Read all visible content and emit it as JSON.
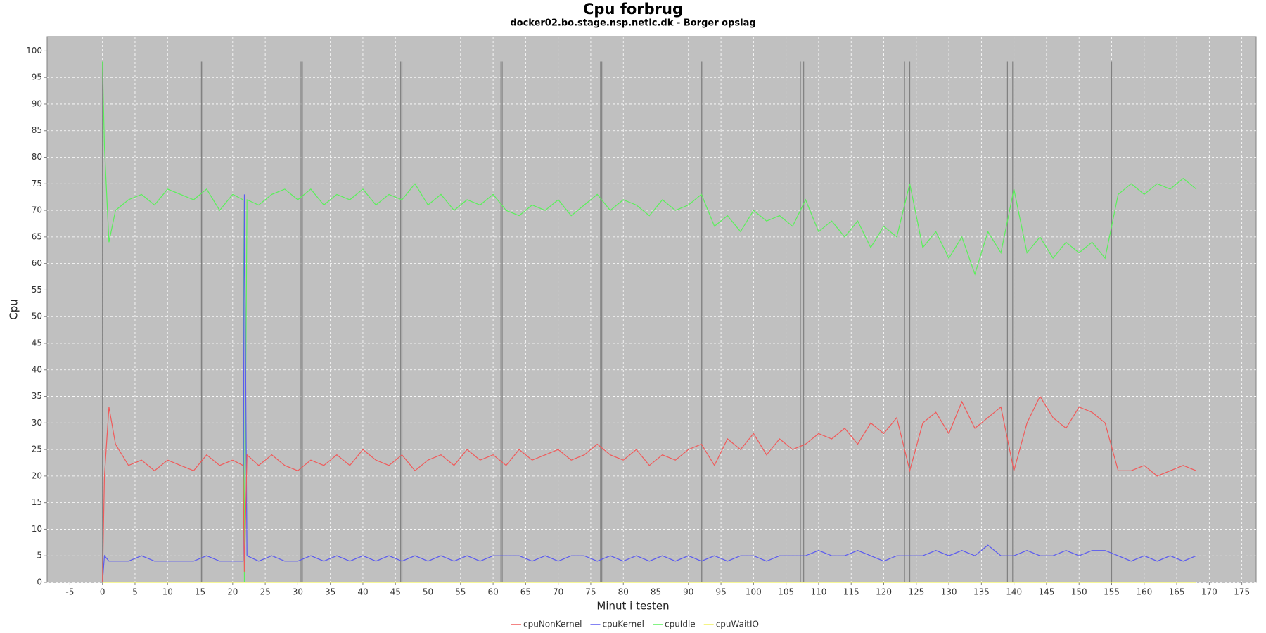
{
  "chart_data": {
    "type": "line",
    "title": "Cpu forbrug",
    "subtitle": "docker02.bo.stage.nsp.netic.dk - Borger opslag",
    "x_label": "Minut i testen",
    "y_label": "Cpu",
    "xlim": [
      -8.5,
      177.2
    ],
    "ylim": [
      0,
      102.7
    ],
    "xticks": [
      -5,
      0,
      5,
      10,
      15,
      20,
      25,
      30,
      35,
      40,
      45,
      50,
      55,
      60,
      65,
      70,
      75,
      80,
      85,
      90,
      95,
      100,
      105,
      110,
      115,
      120,
      125,
      130,
      135,
      140,
      145,
      150,
      155,
      160,
      165,
      170,
      175
    ],
    "yticks": [
      0,
      5,
      10,
      15,
      20,
      25,
      30,
      35,
      40,
      45,
      50,
      55,
      60,
      65,
      70,
      75,
      80,
      85,
      90,
      95,
      100
    ],
    "grid": true,
    "markers": [
      0,
      15.2,
      15.4,
      30.5,
      30.7,
      45.8,
      46.0,
      61.2,
      61.4,
      76.5,
      76.7,
      92.0,
      92.2,
      107.2,
      107.7,
      123.2,
      124.0,
      139.0,
      139.8,
      155.0
    ],
    "marker_top": 98,
    "marker_color": "#808080",
    "x": [
      0,
      0.3,
      1,
      2,
      4,
      6,
      8,
      10,
      12,
      14,
      16,
      18,
      20,
      21.6,
      21.8,
      22.2,
      24,
      26,
      28,
      30,
      32,
      34,
      36,
      38,
      40,
      42,
      44,
      46,
      48,
      50,
      52,
      54,
      56,
      58,
      60,
      62,
      64,
      66,
      68,
      70,
      72,
      74,
      76,
      78,
      80,
      82,
      84,
      86,
      88,
      90,
      92,
      94,
      96,
      98,
      100,
      102,
      104,
      106,
      108,
      110,
      112,
      114,
      116,
      118,
      120,
      122,
      124,
      126,
      128,
      130,
      132,
      134,
      136,
      138,
      140,
      142,
      144,
      146,
      148,
      150,
      152,
      154,
      156,
      158,
      160,
      162,
      164,
      166,
      168
    ],
    "series": [
      {
        "name": "cpuNonKernel",
        "color": "#f05a5a",
        "values": [
          0,
          20,
          33,
          26,
          22,
          23,
          21,
          23,
          22,
          21,
          24,
          22,
          23,
          22,
          2,
          24,
          22,
          24,
          22,
          21,
          23,
          22,
          24,
          22,
          25,
          23,
          22,
          24,
          21,
          23,
          24,
          22,
          25,
          23,
          24,
          22,
          25,
          23,
          24,
          25,
          23,
          24,
          26,
          24,
          23,
          25,
          22,
          24,
          23,
          25,
          26,
          22,
          27,
          25,
          28,
          24,
          27,
          25,
          26,
          28,
          27,
          29,
          26,
          30,
          28,
          31,
          21,
          30,
          32,
          28,
          34,
          29,
          31,
          33,
          21,
          30,
          35,
          31,
          29,
          33,
          32,
          30,
          21,
          21,
          22,
          20,
          21,
          22,
          21
        ]
      },
      {
        "name": "cpuKernel",
        "color": "#5a5af0",
        "values": [
          0,
          5,
          4,
          4,
          4,
          5,
          4,
          4,
          4,
          4,
          5,
          4,
          4,
          4,
          73,
          5,
          4,
          5,
          4,
          4,
          5,
          4,
          5,
          4,
          5,
          4,
          5,
          4,
          5,
          4,
          5,
          4,
          5,
          4,
          5,
          5,
          5,
          4,
          5,
          4,
          5,
          5,
          4,
          5,
          4,
          5,
          4,
          5,
          4,
          5,
          4,
          5,
          4,
          5,
          5,
          4,
          5,
          5,
          5,
          6,
          5,
          5,
          6,
          5,
          4,
          5,
          5,
          5,
          6,
          5,
          6,
          5,
          7,
          5,
          5,
          6,
          5,
          5,
          6,
          5,
          6,
          6,
          5,
          4,
          5,
          4,
          5,
          4,
          5
        ]
      },
      {
        "name": "cpuIdle",
        "color": "#5af05a",
        "values": [
          98,
          82,
          64,
          70,
          72,
          73,
          71,
          74,
          73,
          72,
          74,
          70,
          73,
          72,
          0,
          72,
          71,
          73,
          74,
          72,
          74,
          71,
          73,
          72,
          74,
          71,
          73,
          72,
          75,
          71,
          73,
          70,
          72,
          71,
          73,
          70,
          69,
          71,
          70,
          72,
          69,
          71,
          73,
          70,
          72,
          71,
          69,
          72,
          70,
          71,
          73,
          67,
          69,
          66,
          70,
          68,
          69,
          67,
          72,
          66,
          68,
          65,
          68,
          63,
          67,
          65,
          75,
          63,
          66,
          61,
          65,
          58,
          66,
          62,
          74,
          62,
          65,
          61,
          64,
          62,
          64,
          61,
          73,
          75,
          73,
          75,
          74,
          76,
          74
        ]
      },
      {
        "name": "cpuWaitIO",
        "color": "#f0f05a",
        "values": [
          0,
          0,
          0,
          0,
          0,
          0,
          0,
          0,
          0,
          0,
          0,
          0,
          0,
          0,
          0,
          0,
          0,
          0,
          0,
          0,
          0,
          0,
          0,
          0,
          0,
          0,
          0,
          0,
          0,
          0,
          0,
          0,
          0,
          0,
          0,
          0,
          0,
          0,
          0,
          0,
          0,
          0,
          0,
          0,
          0,
          0,
          0,
          0,
          0,
          0,
          0,
          0,
          0,
          0,
          0,
          0,
          0,
          0,
          0,
          0,
          0,
          0,
          0,
          0,
          0,
          0,
          0,
          0,
          0,
          0,
          0,
          0,
          0,
          0,
          0,
          0,
          0,
          0,
          0,
          0,
          0,
          0,
          0,
          0,
          0,
          0,
          0,
          0,
          0
        ]
      }
    ]
  }
}
